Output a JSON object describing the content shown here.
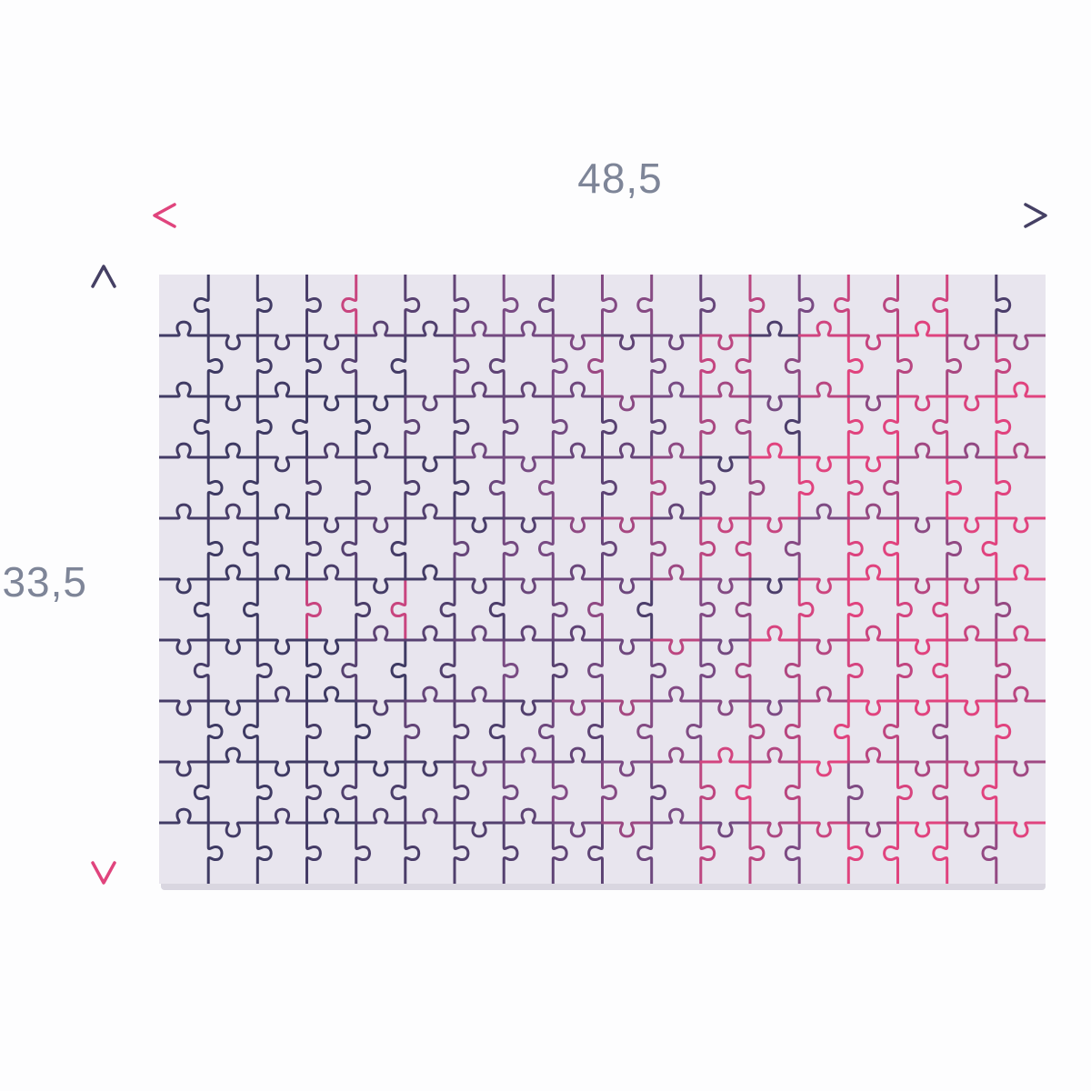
{
  "diagram": {
    "width_label": "48,5",
    "height_label": "33,5",
    "label_color": "#7e8598",
    "arrow_colors": {
      "pink": "#e0447d",
      "purple": "#454064"
    },
    "puzzle": {
      "background": "#e8e5ee",
      "bottom_edge": "#d9d6e0",
      "cols": 18,
      "rows": 10,
      "line_dark": "#3e3a63",
      "line_violet": "#7a4b84",
      "line_pink": "#e0437e",
      "stroke_width": 3,
      "seed": 7
    }
  }
}
